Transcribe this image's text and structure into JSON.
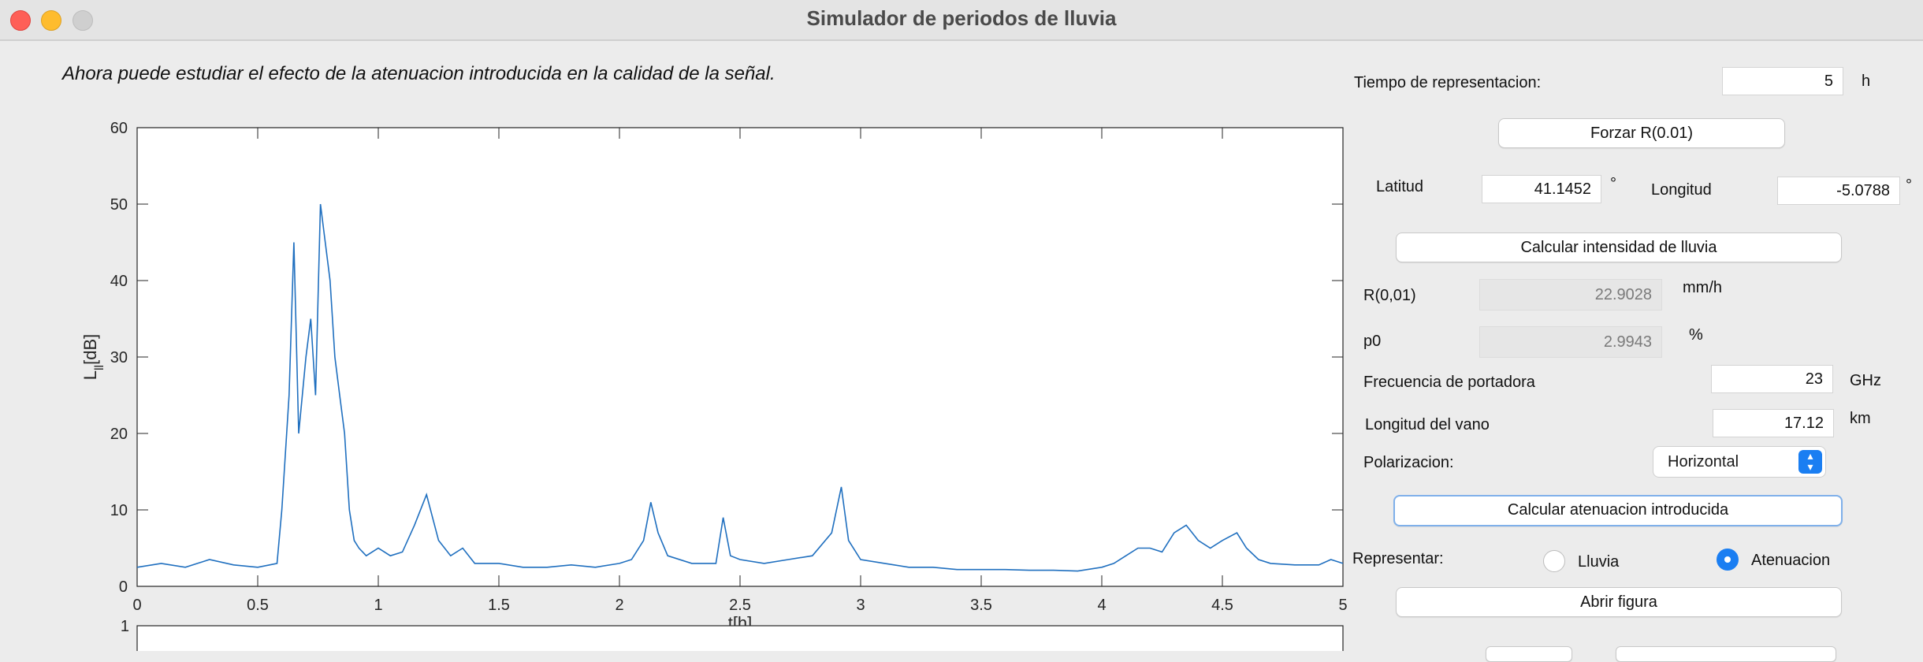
{
  "window": {
    "title": "Simulador de periodos de lluvia"
  },
  "info_text": "Ahora puede estudiar el efecto de la atenuacion introducida en la calidad de la señal.",
  "controls": {
    "tiempo": {
      "label": "Tiempo de representacion:",
      "value": "5",
      "unit": "h"
    },
    "forzar_button": "Forzar R(0.01)",
    "latitud": {
      "label": "Latitud",
      "value": "41.1452",
      "unit": "°"
    },
    "longitud": {
      "label": "Longitud",
      "value": "-5.0788",
      "unit": "°"
    },
    "calc_intensidad_button": "Calcular intensidad de lluvia",
    "r001": {
      "label": "R(0,01)",
      "value": "22.9028",
      "unit": "mm/h"
    },
    "p0": {
      "label": "p0",
      "value": "2.9943",
      "unit": "%"
    },
    "frecuencia": {
      "label": "Frecuencia de portadora",
      "value": "23",
      "unit": "GHz"
    },
    "longitud_vano": {
      "label": "Longitud del vano",
      "value": "17.12",
      "unit": "km"
    },
    "polarizacion": {
      "label": "Polarizacion:",
      "value": "Horizontal"
    },
    "calc_atenuacion_button": "Calcular atenuacion introducida",
    "representar": {
      "label": "Representar:",
      "options": [
        "Lluvia",
        "Atenuacion"
      ],
      "selected": "Atenuacion"
    },
    "abrir_button": "Abrir figura"
  },
  "colors": {
    "line": "#1f6fbf",
    "accent": "#1a7ef2"
  },
  "chart_data": [
    {
      "type": "line",
      "xlabel": "t[h]",
      "ylabel_main": "L",
      "ylabel_sub": "ll",
      "ylabel_unit": "[dB]",
      "xlim": [
        0,
        5
      ],
      "ylim": [
        0,
        60
      ],
      "xticks": [
        0,
        0.5,
        1,
        1.5,
        2,
        2.5,
        3,
        3.5,
        4,
        4.5,
        5
      ],
      "xtick_labels": [
        "0",
        "0.5",
        "1",
        "1.5",
        "2",
        "2.5",
        "3",
        "3.5",
        "4",
        "4.5",
        "5"
      ],
      "yticks": [
        0,
        10,
        20,
        30,
        40,
        50,
        60
      ],
      "ytick_labels": [
        "0",
        "10",
        "20",
        "30",
        "40",
        "50",
        "60"
      ],
      "grid": false,
      "series": [
        {
          "x": [
            0,
            0.1,
            0.2,
            0.3,
            0.4,
            0.5,
            0.58,
            0.6,
            0.63,
            0.65,
            0.67,
            0.7,
            0.72,
            0.74,
            0.76,
            0.78,
            0.8,
            0.82,
            0.84,
            0.86,
            0.88,
            0.9,
            0.92,
            0.95,
            1.0,
            1.05,
            1.1,
            1.15,
            1.2,
            1.25,
            1.3,
            1.35,
            1.4,
            1.5,
            1.6,
            1.7,
            1.8,
            1.9,
            2.0,
            2.05,
            2.1,
            2.13,
            2.16,
            2.2,
            2.3,
            2.4,
            2.43,
            2.46,
            2.5,
            2.6,
            2.7,
            2.8,
            2.88,
            2.92,
            2.95,
            3.0,
            3.1,
            3.2,
            3.3,
            3.4,
            3.5,
            3.6,
            3.7,
            3.8,
            3.9,
            4.0,
            4.05,
            4.1,
            4.15,
            4.2,
            4.25,
            4.3,
            4.35,
            4.4,
            4.45,
            4.5,
            4.56,
            4.6,
            4.65,
            4.7,
            4.8,
            4.9,
            4.95,
            5.0
          ],
          "values": [
            2.5,
            3,
            2.5,
            3.5,
            2.8,
            2.5,
            3,
            10,
            25,
            45,
            20,
            30,
            35,
            25,
            50,
            45,
            40,
            30,
            25,
            20,
            10,
            6,
            5,
            4,
            5,
            4,
            4.5,
            8,
            12,
            6,
            4,
            5,
            3,
            3,
            2.5,
            2.5,
            2.8,
            2.5,
            3,
            3.5,
            6,
            11,
            7,
            4,
            3,
            3,
            9,
            4,
            3.5,
            3,
            3.5,
            4,
            7,
            13,
            6,
            3.5,
            3,
            2.5,
            2.5,
            2.2,
            2.2,
            2.2,
            2.1,
            2.1,
            2,
            2.5,
            3,
            4,
            5,
            5,
            4.5,
            7,
            8,
            6,
            5,
            6,
            7,
            5,
            3.5,
            3,
            2.8,
            2.8,
            3.5,
            3
          ]
        }
      ]
    },
    {
      "type": "line",
      "ylim": [
        0,
        1
      ],
      "yticks": [
        1
      ],
      "ytick_labels": [
        "1"
      ],
      "series": []
    }
  ]
}
